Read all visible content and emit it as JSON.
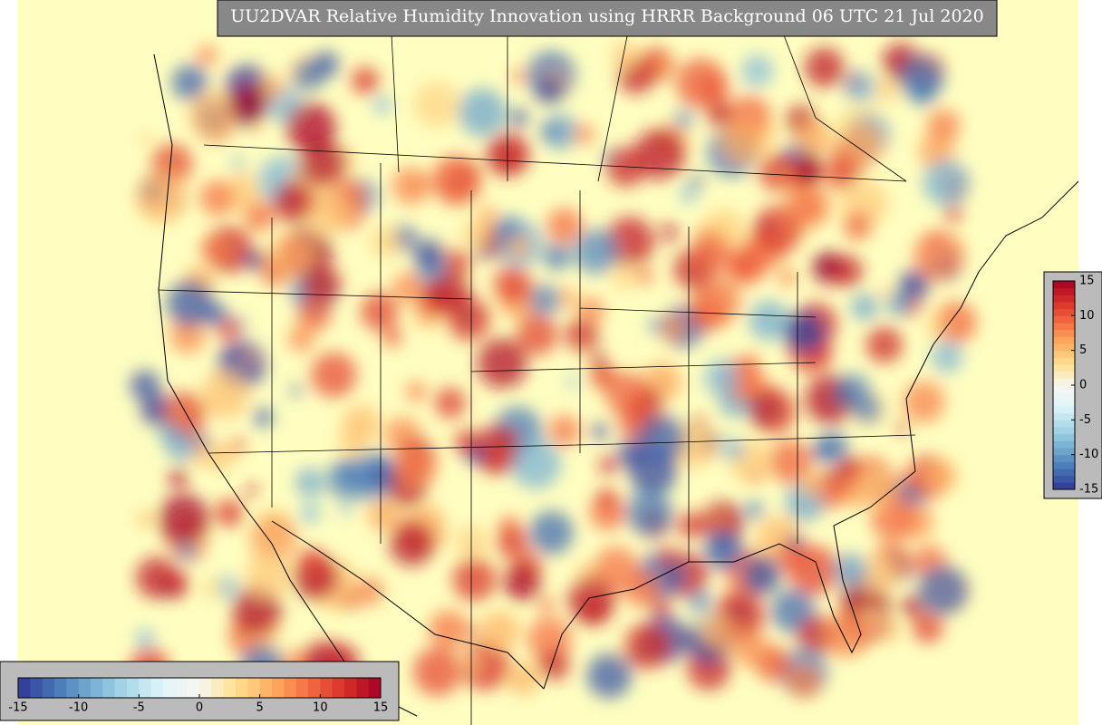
{
  "title": "UU2DVAR Relative Humidity Innovation using HRRR Background 06 UTC 21 Jul 2020",
  "colorbar": {
    "range": [
      -15,
      15
    ],
    "ticks": [
      -15,
      -10,
      -5,
      0,
      5,
      10,
      15
    ],
    "colors": [
      "#313695",
      "#4575b4",
      "#74add1",
      "#abd9e9",
      "#e0f3f8",
      "#f7f7f0",
      "#fee090",
      "#fdae61",
      "#f46d43",
      "#d73027",
      "#a50026"
    ]
  }
}
